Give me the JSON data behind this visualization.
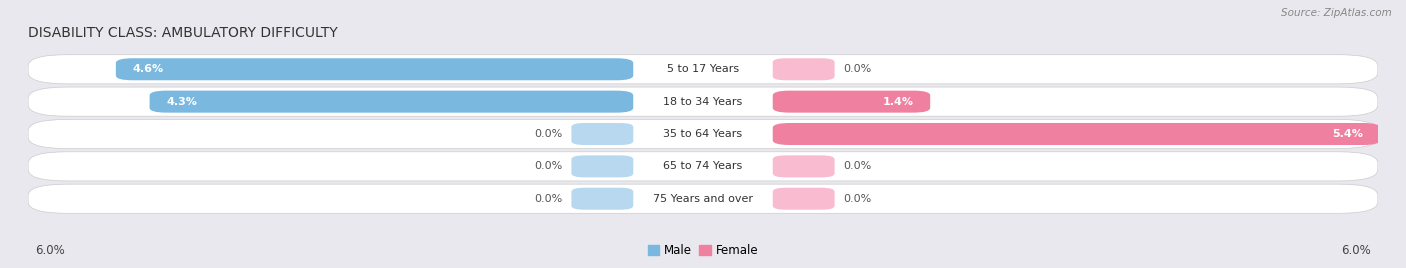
{
  "title": "DISABILITY CLASS: AMBULATORY DIFFICULTY",
  "source": "Source: ZipAtlas.com",
  "categories": [
    "5 to 17 Years",
    "18 to 34 Years",
    "35 to 64 Years",
    "65 to 74 Years",
    "75 Years and over"
  ],
  "male_values": [
    4.6,
    4.3,
    0.0,
    0.0,
    0.0
  ],
  "female_values": [
    0.0,
    1.4,
    5.4,
    0.0,
    0.0
  ],
  "male_color": "#7ab8e0",
  "female_color": "#f080a0",
  "male_color_light": "#b8d8ef",
  "female_color_light": "#f8bbd0",
  "male_label": "Male",
  "female_label": "Female",
  "max_val": 6.0,
  "fig_bg_color": "#e8e8ee",
  "row_bg_color": "#f5f5f8",
  "row_alt_color": "#eaeaef",
  "title_color": "#333333",
  "axis_label_left": "6.0%",
  "axis_label_right": "6.0%",
  "title_fontsize": 10,
  "tick_fontsize": 8.5,
  "bar_label_fontsize": 8,
  "category_fontsize": 8
}
